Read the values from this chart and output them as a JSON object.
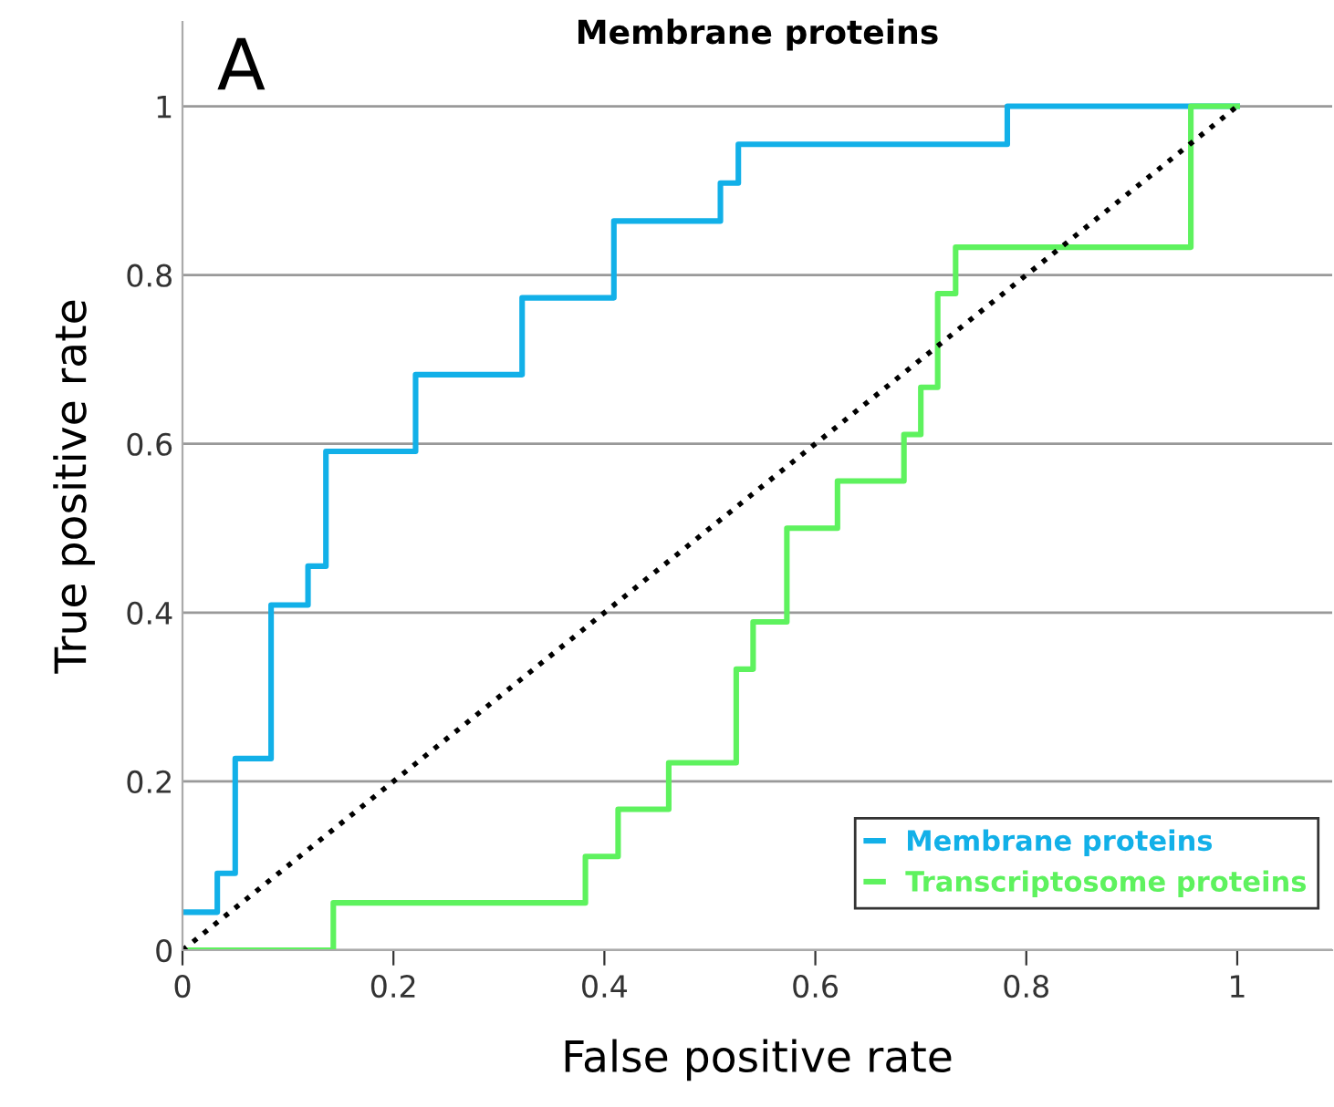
{
  "chart_data": {
    "type": "step",
    "title": "Membrane proteins",
    "xlabel": "False positive rate",
    "ylabel": "True positive rate",
    "annotations": [
      "A"
    ],
    "series": [
      {
        "name": "Membrane proteins",
        "color": "#12b0e8",
        "x": [
          0,
          0.033,
          0.05,
          0.084,
          0.119,
          0.136,
          0.221,
          0.322,
          0.409,
          0.51,
          0.527,
          0.782,
          1.0
        ],
        "values": [
          0.045,
          0.091,
          0.227,
          0.409,
          0.455,
          0.591,
          0.682,
          0.773,
          0.864,
          0.909,
          0.955,
          1.0,
          1.0
        ]
      },
      {
        "name": "Transcriptosome proteins",
        "color": "#5ef25e",
        "x": [
          0,
          0.143,
          0.382,
          0.413,
          0.461,
          0.525,
          0.541,
          0.573,
          0.621,
          0.684,
          0.7,
          0.716,
          0.733,
          0.956,
          1.0
        ],
        "values": [
          0,
          0.056,
          0.111,
          0.167,
          0.222,
          0.333,
          0.389,
          0.5,
          0.556,
          0.611,
          0.667,
          0.778,
          0.833,
          1.0,
          1.0
        ]
      },
      {
        "type": "line",
        "color": "#000000",
        "line_style": "dotted",
        "x": [
          0,
          1
        ],
        "values": [
          0,
          1
        ]
      }
    ],
    "xlim": [
      0,
      1.09
    ],
    "ylim": [
      0,
      1.1
    ],
    "xticks": [
      0,
      0.2,
      0.4,
      0.6,
      0.8,
      1
    ],
    "yticks": [
      0,
      0.2,
      0.4,
      0.6,
      0.8,
      1
    ],
    "grid": "y",
    "legend": "bottom right"
  }
}
